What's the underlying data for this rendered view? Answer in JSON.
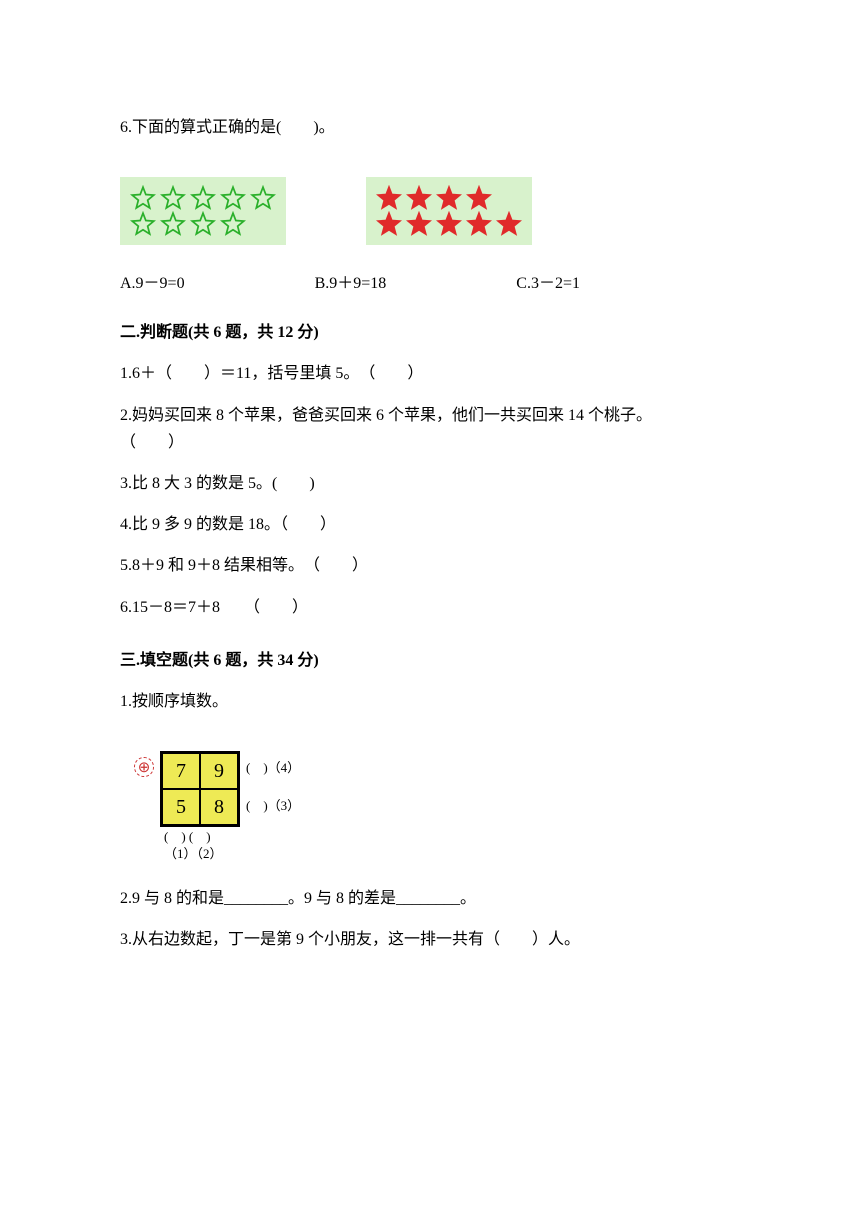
{
  "stars": {
    "green_block": {
      "bg": "#d8f2cc",
      "rows": [
        5,
        4
      ],
      "color": "#2bb02b",
      "fill": "none"
    },
    "red_block": {
      "bg": "#d8f2cc",
      "rows": [
        4,
        5
      ],
      "color": "#e02a2a",
      "fill": "#e02a2a"
    }
  },
  "q6": {
    "stem": "6.下面的算式正确的是(　　)。",
    "optA": "A.9－9=0",
    "optB": "B.9＋9=18",
    "optC": "C.3－2=1"
  },
  "sec2": {
    "title": "二.判断题(共 6 题，共 12 分)",
    "q1": "1.6＋（　　）＝11，括号里填 5。　（　　）",
    "q2a": "2.妈妈买回来 8 个苹果，爸爸买回来 6 个苹果，他们一共买回来 14 个桃子。",
    "q2b": "（　　）",
    "q3": "3.比 8 大 3 的数是 5。(　　)",
    "q4": "4.比 9 多 9 的数是 18。（　　）",
    "q5": "5.8＋9 和 9＋8 结果相等。　（　　）",
    "q6": "6.15－8＝7＋8　　（　　）"
  },
  "sec3": {
    "title": "三.填空题(共 6 题，共 34 分)",
    "q1": "1.按顺序填数。",
    "puzzle": {
      "bg": "#eeea55",
      "cells": [
        [
          "7",
          "9"
        ],
        [
          "5",
          "8"
        ]
      ],
      "right1": "(　)（4）",
      "right2": "(　)（3）",
      "bottom1": "(　) (　)",
      "bottom2": "（1）（2）",
      "icon": "⊕"
    },
    "q2": "2.9 与 8 的和是________。9 与 8 的差是________。",
    "q3": "3.从右边数起，丁一是第 9 个小朋友，这一排一共有（　　）人。"
  }
}
